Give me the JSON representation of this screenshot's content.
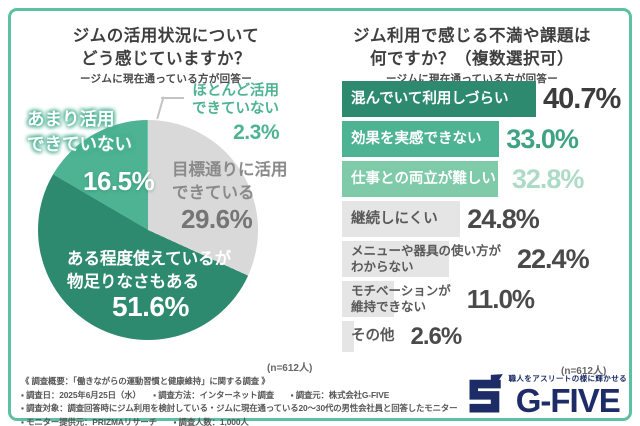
{
  "frame": {
    "border_color": "#5ec0a2",
    "background": "#ffffff"
  },
  "chart_data": [
    {
      "type": "pie",
      "title": "ジムの活用状況について\nどう感じていますか？",
      "subtitle": "ージムに現在通っている方が回答ー",
      "sample_note": "(n=612人)",
      "start_angle_deg": 8,
      "direction": "clockwise",
      "slices": [
        {
          "label": "目標通りに活用\nできている",
          "value": 29.6,
          "display": "29.6%",
          "color": "#d9d9d9",
          "text_color": "#8a8a8a"
        },
        {
          "label": "ある程度使えているが\n物足りなさもある",
          "value": 51.6,
          "display": "51.6%",
          "color": "#2e8a6e",
          "text_color": "#ffffff"
        },
        {
          "label": "あまり活用\nできていない",
          "value": 16.5,
          "display": "16.5%",
          "color": "#4db392",
          "text_color": "#ffffff"
        },
        {
          "label": "ほとんど活用\nできていない",
          "value": 2.3,
          "display": "2.3%",
          "color": "#97d6bd",
          "text_color": "#4db392"
        }
      ]
    },
    {
      "type": "bar",
      "title": "ジム利用で感じる不満や課題は\n何ですか？（複数選択可）",
      "subtitle": "ージムに現在通っている方が回答ー",
      "sample_note": "(n=612人)",
      "xlim": [
        0,
        45
      ],
      "bars": [
        {
          "label": "混んでいて利用しづらい",
          "value": 40.7,
          "display": "40.7%",
          "bar_color": "#2e8a6e",
          "label_color": "#ffffff",
          "value_color": "#3c3c3c"
        },
        {
          "label": "効果を実感できない",
          "value": 33.0,
          "display": "33.0%",
          "bar_color": "#4db392",
          "label_color": "#ffffff",
          "value_color": "#3fa383"
        },
        {
          "label": "仕事との両立が難しい",
          "value": 32.8,
          "display": "32.8%",
          "bar_color": "#7ecaa9",
          "label_color": "#ffffff",
          "value_color": "#aedbc8"
        },
        {
          "label": "継続しにくい",
          "value": 24.8,
          "display": "24.8%",
          "bar_color": "#e5e5e5",
          "label_color": "#595959",
          "value_color": "#4a4a4a"
        },
        {
          "label": "メニューや器具の使い方が\nわからない",
          "value": 22.4,
          "display": "22.4%",
          "bar_color": "#e5e5e5",
          "label_color": "#595959",
          "value_color": "#4a4a4a"
        },
        {
          "label": "モチベーションが\n維持できない",
          "value": 11.0,
          "display": "11.0%",
          "bar_color": "#e5e5e5",
          "label_color": "#595959",
          "value_color": "#4a4a4a"
        },
        {
          "label": "その他",
          "value": 2.6,
          "display": "2.6%",
          "bar_color": "#e5e5e5",
          "label_color": "#595959",
          "value_color": "#4a4a4a"
        }
      ]
    }
  ],
  "footer": {
    "line1": "《 調査概要：「働きながらの運動習慣と健康維持」に関する調査 》",
    "line2": "▪ 調査日：2025年6月25日（水）　　▪ 調査方法：インターネット調査　　▪ 調査元：株式会社G-FIVE",
    "line3": "▪ 調査対象：調査回答時にジム利用を検討している・ジムに現在通っている20～30代の男性会社員と回答したモニター",
    "line4": "▪ モニター提供元：PRIZMAリサーチ　　▪ 調査人数：1,000人"
  },
  "logo": {
    "tagline": "職人をアスリートの様に輝かせる",
    "wordmark": "G-FIVE",
    "color": "#1d2b67"
  }
}
